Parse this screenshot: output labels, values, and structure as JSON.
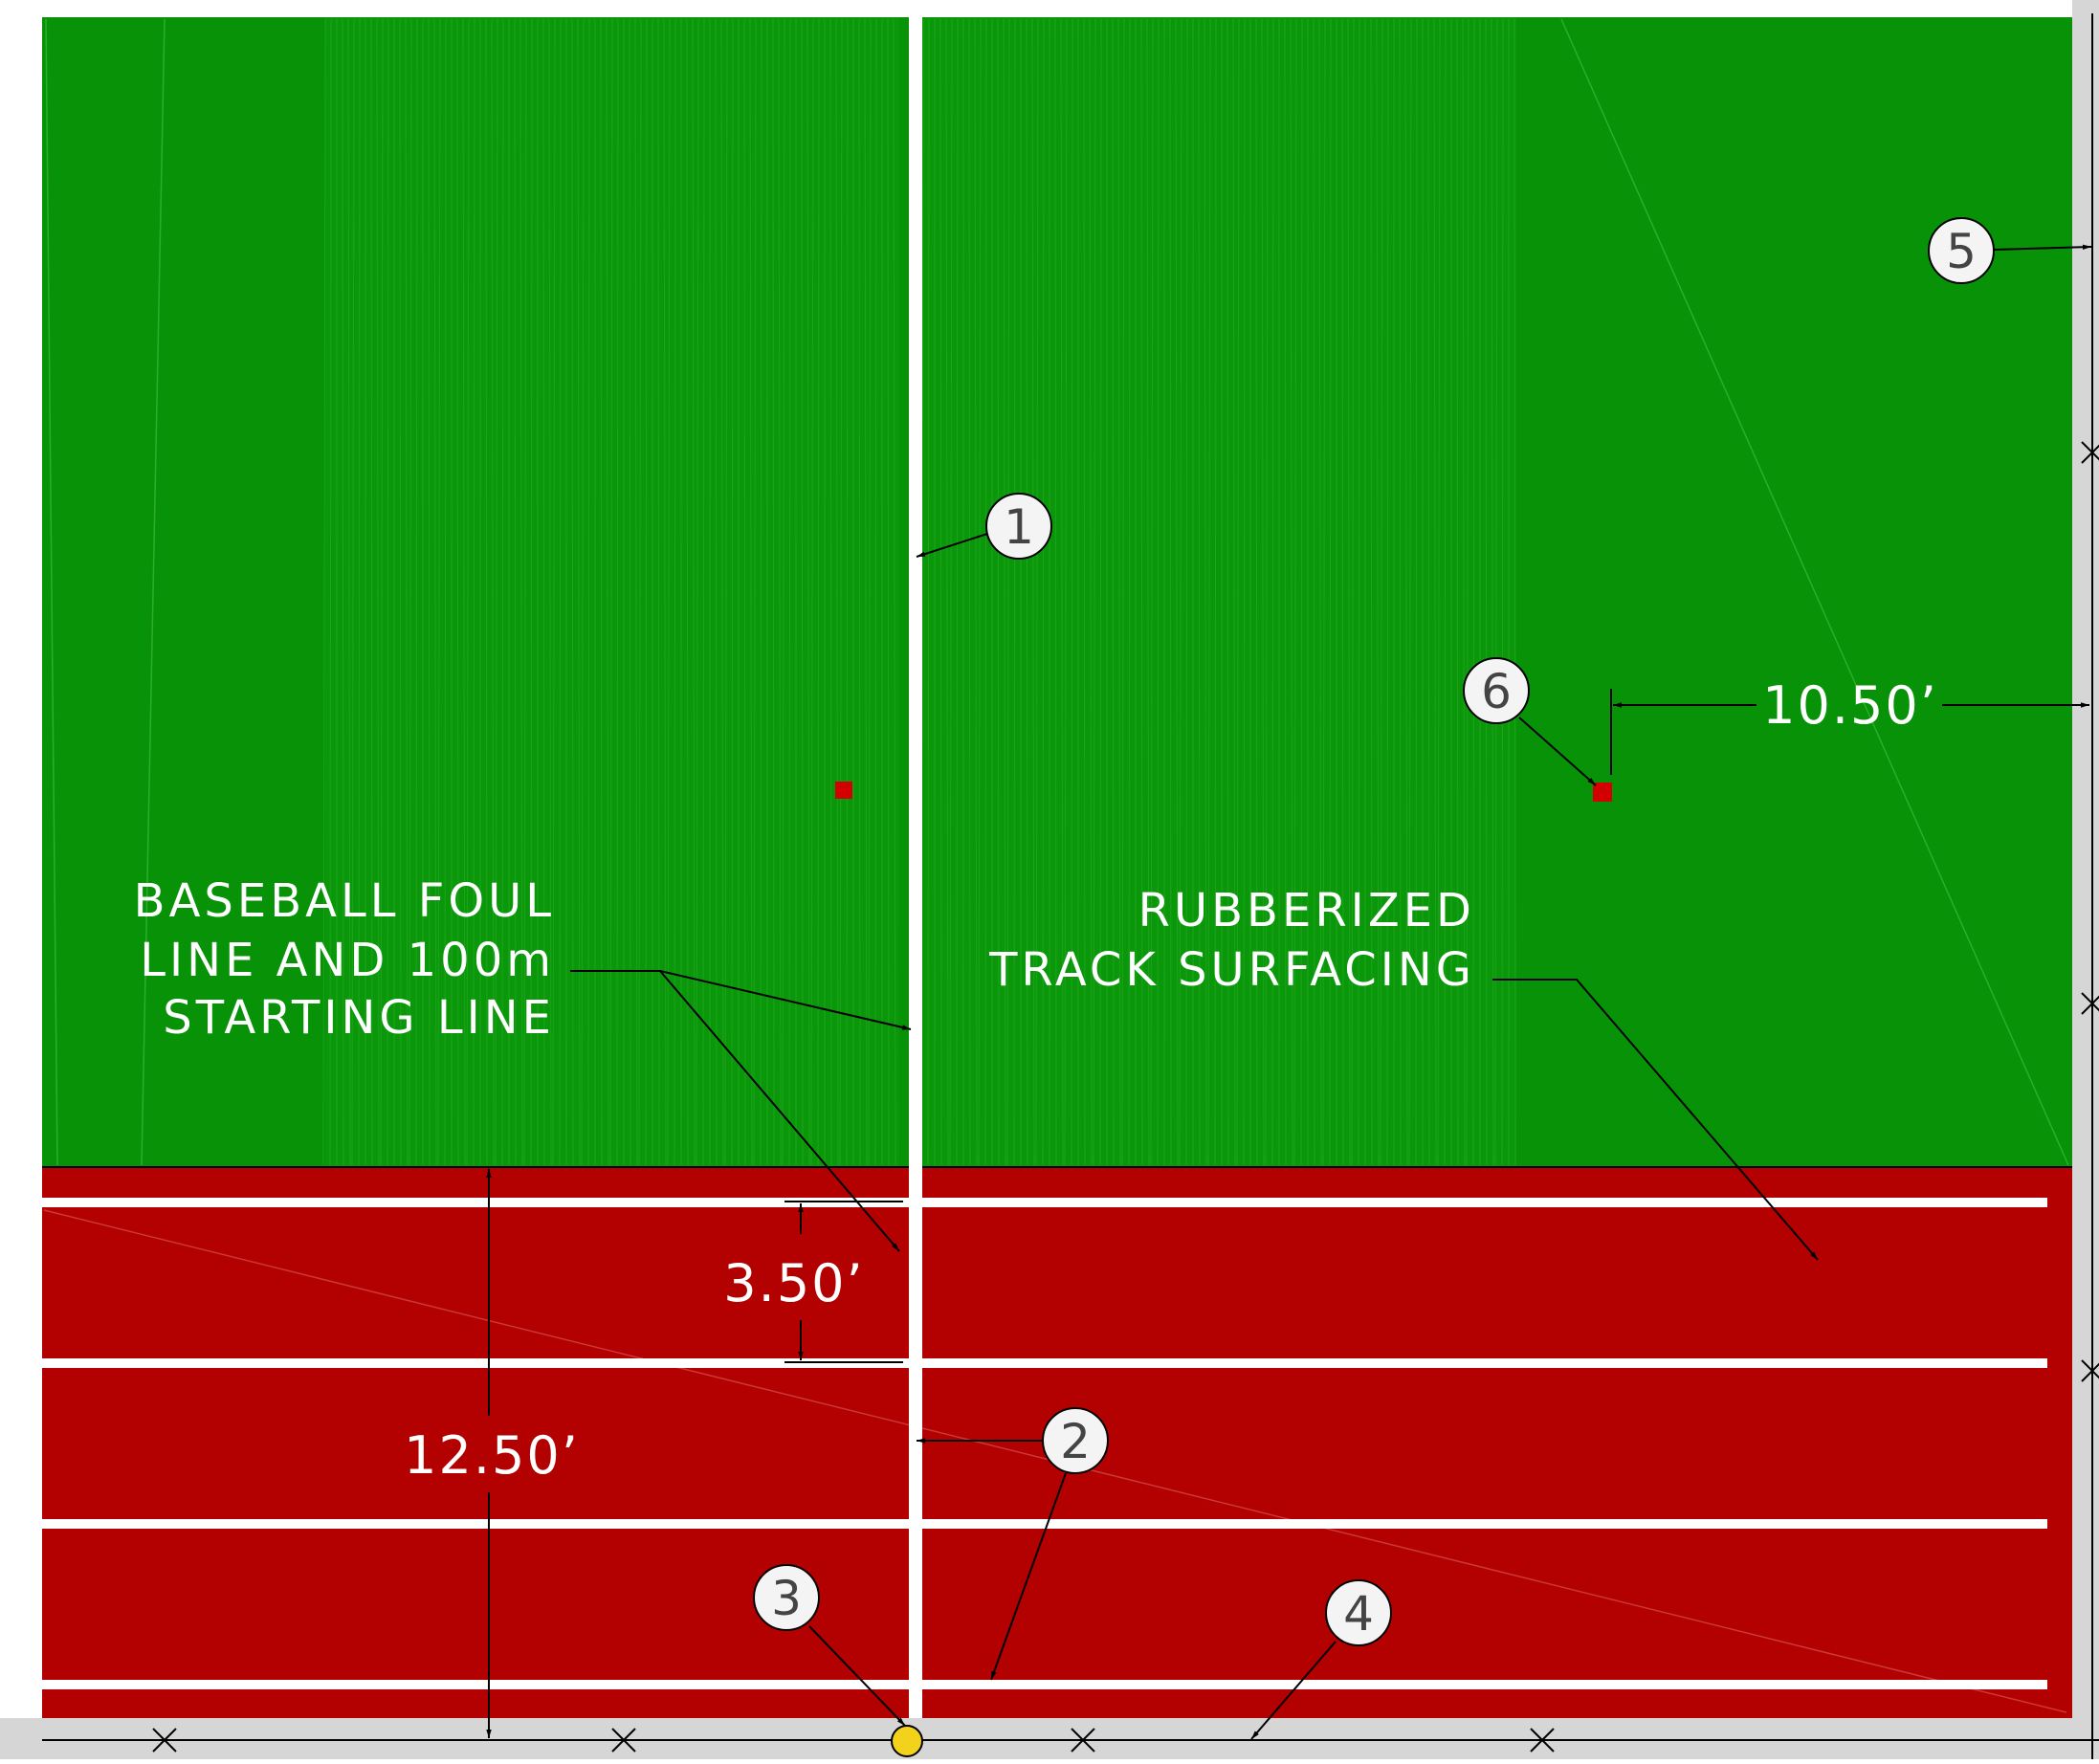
{
  "drawing": {
    "colors": {
      "turf": "#079207",
      "turf_stripe": "#0b9a0b",
      "track": "#b30000",
      "line": "#ffffff",
      "leader": "#000000",
      "marker": "#d20000",
      "keynote_fill": "#f4f4f4",
      "keynote_text": "#444444",
      "paving": "#d6d6d6",
      "point": "#f2d21b"
    },
    "labels": {
      "foul_line": [
        "BASEBALL  FOUL",
        "LINE  AND  100m",
        "STARTING  LINE"
      ],
      "track_surface": [
        "RUBBERIZED",
        "TRACK  SURFACING"
      ]
    },
    "dimensions": {
      "offset": "10.50’",
      "lane_width": "3.50’",
      "track_depth": "12.50’"
    },
    "keynotes": [
      "1",
      "2",
      "3",
      "4",
      "5",
      "6"
    ]
  }
}
